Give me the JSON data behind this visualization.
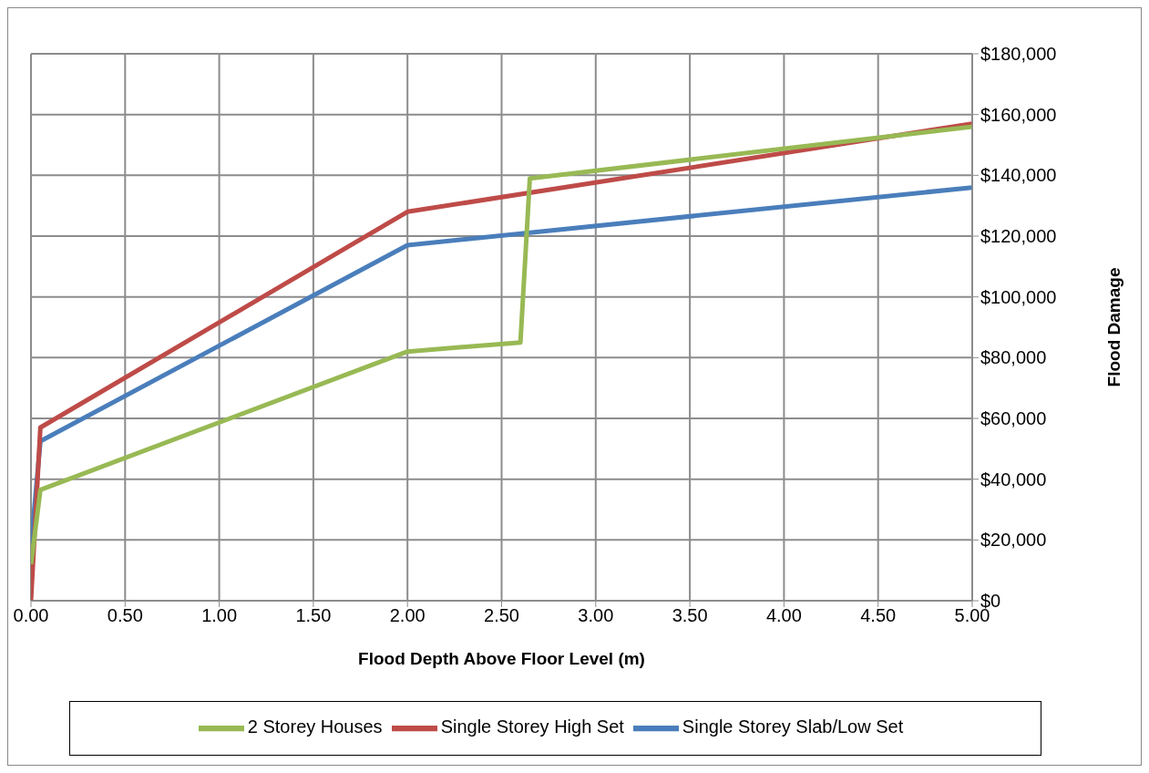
{
  "chart_data": {
    "type": "line",
    "xlabel": "Flood Depth Above Floor Level  (m)",
    "ylabel": "Flood Damage",
    "xlim": [
      0,
      5
    ],
    "ylim": [
      0,
      180000
    ],
    "xticks": [
      {
        "value": 0,
        "label": "0.00"
      },
      {
        "value": 0.5,
        "label": "0.50"
      },
      {
        "value": 1,
        "label": "1.00"
      },
      {
        "value": 1.5,
        "label": "1.50"
      },
      {
        "value": 2,
        "label": "2.00"
      },
      {
        "value": 2.5,
        "label": "2.50"
      },
      {
        "value": 3,
        "label": "3.00"
      },
      {
        "value": 3.5,
        "label": "3.50"
      },
      {
        "value": 4,
        "label": "4.00"
      },
      {
        "value": 4.5,
        "label": "4.50"
      },
      {
        "value": 5,
        "label": "5.00"
      }
    ],
    "yticks": [
      {
        "value": 0,
        "label": "$0"
      },
      {
        "value": 20000,
        "label": "$20,000"
      },
      {
        "value": 40000,
        "label": "$40,000"
      },
      {
        "value": 60000,
        "label": "$60,000"
      },
      {
        "value": 80000,
        "label": "$80,000"
      },
      {
        "value": 100000,
        "label": "$100,000"
      },
      {
        "value": 120000,
        "label": "$120,000"
      },
      {
        "value": 140000,
        "label": "$140,000"
      },
      {
        "value": 160000,
        "label": "$160,000"
      },
      {
        "value": 180000,
        "label": "$180,000"
      }
    ],
    "grid": true,
    "legend": "bottom",
    "marker": "none",
    "line_style": "solid",
    "series": [
      {
        "name": "Single Storey Slab/Low Set",
        "color": "#4a7ebb",
        "x": [
          0,
          0.05,
          2,
          5
        ],
        "values": [
          18000,
          52500,
          117000,
          136000
        ]
      },
      {
        "name": "Single Storey High Set",
        "color": "#be4b48",
        "x": [
          0,
          0.05,
          2,
          5
        ],
        "values": [
          0,
          57000,
          128000,
          157000
        ]
      },
      {
        "name": "2 Storey Houses",
        "color": "#98b954",
        "x": [
          0,
          0.05,
          2,
          2.6,
          2.65,
          5
        ],
        "values": [
          12000,
          36500,
          82000,
          85000,
          139000,
          156000
        ]
      }
    ]
  }
}
